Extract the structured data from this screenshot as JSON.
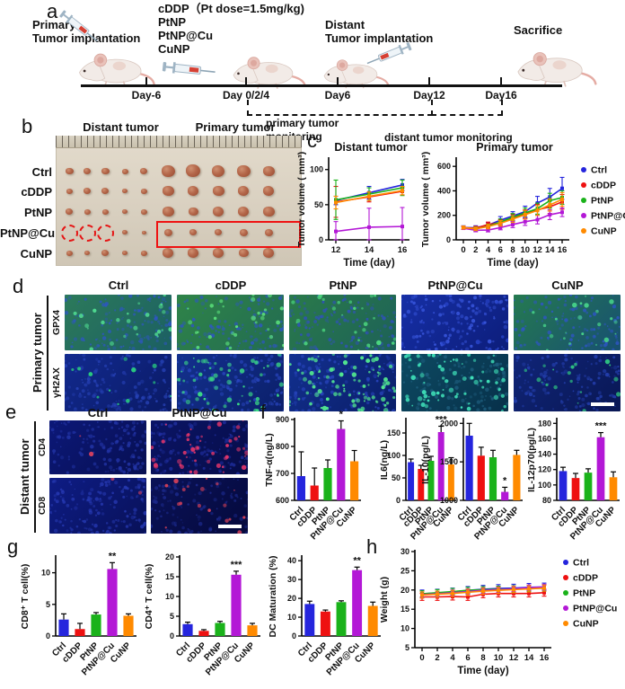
{
  "panel_a": {
    "label": "a",
    "primary_implant": [
      "Primary",
      "Tumor implantation"
    ],
    "treatments": [
      "cDDP（Pt dose=1.5mg/kg)",
      "PtNP",
      "PtNP@Cu",
      "CuNP"
    ],
    "distant_implant": [
      "Distant",
      "Tumor implantation"
    ],
    "sacrifice": "Sacrifice",
    "days": [
      "Day-6",
      "Day 0/2/4",
      "Day6",
      "Day12",
      "Day16"
    ],
    "monitoring_primary": [
      "primary tumor",
      "monitoring"
    ],
    "monitoring_distant": "distant tumor monitoring"
  },
  "panel_b": {
    "label": "b",
    "headers": [
      "Distant tumor",
      "Primary tumor"
    ],
    "rows": [
      "Ctrl",
      "cDDP",
      "PtNP",
      "PtNP@Cu",
      "CuNP"
    ],
    "photo": {
      "rows": [
        {
          "label": "Ctrl",
          "distant": [
            9,
            8,
            9,
            7,
            8
          ],
          "primary": [
            15,
            16,
            14,
            15,
            13
          ],
          "primary_boxed": false
        },
        {
          "label": "cDDP",
          "distant": [
            7,
            8,
            8,
            6,
            7
          ],
          "primary": [
            13,
            12,
            13,
            12,
            12
          ],
          "primary_boxed": false
        },
        {
          "label": "PtNP",
          "distant": [
            8,
            7,
            7,
            6,
            7
          ],
          "primary": [
            13,
            11,
            12,
            12,
            13
          ],
          "primary_boxed": false
        },
        {
          "label": "PtNP@Cu",
          "distant": [
            0,
            0,
            0,
            6,
            5
          ],
          "primary": [
            9,
            8,
            8,
            9,
            9
          ],
          "primary_boxed": true
        },
        {
          "label": "CuNP",
          "distant": [
            7,
            6,
            8,
            6,
            7
          ],
          "primary": [
            12,
            12,
            12,
            11,
            12
          ],
          "primary_boxed": false
        }
      ]
    }
  },
  "panel_c": {
    "label": "c"
  },
  "panel_d": {
    "label": "d",
    "col_headers": [
      "Ctrl",
      "cDDP",
      "PtNP",
      "PtNP@Cu",
      "CuNP"
    ],
    "group_label": "Primary tumor",
    "row_labels": [
      "GPX4",
      "γH2AX"
    ],
    "tiles": [
      [
        {
          "bg1": "#2c7a5a",
          "bg2": "#1b5f63",
          "nuc": "#2e55c8",
          "nucd": 130,
          "fleck": "#4fd88f",
          "fld": 25,
          "seed": 11
        },
        {
          "bg1": "#2f8448",
          "bg2": "#226b52",
          "nuc": "#2e55c8",
          "nucd": 130,
          "fleck": "#5ae07a",
          "fld": 30,
          "seed": 22
        },
        {
          "bg1": "#2a7a4a",
          "bg2": "#1d6158",
          "nuc": "#3050c0",
          "nucd": 130,
          "fleck": "#4cd87f",
          "fld": 28,
          "seed": 33
        },
        {
          "bg1": "#162fa6",
          "bg2": "#0c1d7a",
          "nuc": "#3a58e0",
          "nucd": 150,
          "fleck": "#2743c8",
          "fld": 15,
          "seed": 44
        },
        {
          "bg1": "#257a50",
          "bg2": "#174f72",
          "nuc": "#2e55c8",
          "nucd": 120,
          "fleck": "#46d089",
          "fld": 22,
          "seed": 55
        }
      ],
      [
        {
          "bg1": "#122a8e",
          "bg2": "#0a1a66",
          "nuc": "#2742b8",
          "nucd": 150,
          "fleck": "#28c87f",
          "fld": 12,
          "seed": 66
        },
        {
          "bg1": "#13318e",
          "bg2": "#0b1f6a",
          "nuc": "#2946c0",
          "nucd": 150,
          "fleck": "#3ad887",
          "fld": 55,
          "seed": 77
        },
        {
          "bg1": "#123090",
          "bg2": "#0a1e68",
          "nuc": "#2946c0",
          "nucd": 150,
          "fleck": "#52e88f",
          "fld": 90,
          "seed": 88
        },
        {
          "bg1": "#0d4a62",
          "bg2": "#07304a",
          "nuc": "#1e6080",
          "nucd": 140,
          "fleck": "#3fe0b8",
          "fld": 70,
          "seed": 99
        },
        {
          "bg1": "#102578",
          "bg2": "#091754",
          "nuc": "#2440b0",
          "nucd": 140,
          "fleck": "#30c882",
          "fld": 18,
          "seed": 101
        }
      ]
    ]
  },
  "panel_e": {
    "label": "e",
    "col_headers": [
      "Ctrl",
      "PtNP@Cu"
    ],
    "group_label": "Distant tumor",
    "row_labels": [
      "CD4",
      "CD8"
    ],
    "tiles": [
      [
        {
          "bg1": "#0c1878",
          "bg2": "#070f52",
          "nuc": "#2335a8",
          "nucd": 150,
          "fleck": "#d04060",
          "fld": 3,
          "seed": 7
        },
        {
          "bg1": "#0b1566",
          "bg2": "#060c48",
          "nuc": "#202fa0",
          "nucd": 140,
          "fleck": "#e0356a",
          "fld": 45,
          "seed": 17
        }
      ],
      [
        {
          "bg1": "#0e1c85",
          "bg2": "#081158",
          "nuc": "#2639b2",
          "nucd": 160,
          "fleck": "#d04060",
          "fld": 2,
          "seed": 27
        },
        {
          "bg1": "#0a1258",
          "bg2": "#05093c",
          "nuc": "#1c2a8e",
          "nucd": 120,
          "fleck": "#d0405a",
          "fld": 18,
          "seed": 37
        }
      ]
    ]
  },
  "panel_f": {
    "label": "f"
  },
  "panel_g": {
    "label": "g"
  },
  "panel_h": {
    "label": "h"
  },
  "chart_data": {
    "groups": [
      "Ctrl",
      "cDDP",
      "PtNP",
      "PtNP@Cu",
      "CuNP"
    ],
    "group_colors": [
      "#2525dd",
      "#ee1111",
      "#1ab21a",
      "#b318d6",
      "#ff8a00"
    ],
    "distant_tumor": {
      "type": "line",
      "title": "Distant tumor",
      "xlabel": "Time (day)",
      "ylabel": "Tumor volume ( mm³)",
      "x": [
        12,
        14,
        16
      ],
      "xticks": [
        12,
        14,
        16
      ],
      "ylim": [
        0,
        115
      ],
      "yticks": [
        0,
        50,
        100
      ],
      "legend": false,
      "series": [
        {
          "name": "Ctrl",
          "values": [
            56,
            67,
            78
          ],
          "err": [
            6,
            9,
            8
          ]
        },
        {
          "name": "cDDP",
          "values": [
            54,
            61,
            69
          ],
          "err": [
            22,
            7,
            5
          ]
        },
        {
          "name": "PtNP",
          "values": [
            57,
            65,
            74
          ],
          "err": [
            28,
            9,
            11
          ]
        },
        {
          "name": "PtNP@Cu",
          "values": [
            12,
            18,
            19
          ],
          "err": [
            14,
            27,
            27
          ]
        },
        {
          "name": "CuNP",
          "values": [
            53,
            62,
            70
          ],
          "err": [
            9,
            6,
            6
          ]
        }
      ]
    },
    "primary_tumor": {
      "type": "line",
      "title": "Primary tumor",
      "xlabel": "Time (day)",
      "ylabel": "Tumor volume ( mm³)",
      "x": [
        0,
        2,
        4,
        6,
        8,
        10,
        12,
        14,
        16
      ],
      "xticks": [
        0,
        2,
        4,
        6,
        8,
        10,
        12,
        14,
        16
      ],
      "ylim": [
        0,
        660
      ],
      "yticks": [
        0,
        200,
        400,
        600
      ],
      "legend": true,
      "legend_position": "right",
      "series": [
        {
          "name": "Ctrl",
          "values": [
            100,
            100,
            120,
            160,
            195,
            230,
            300,
            350,
            420
          ],
          "err": [
            15,
            15,
            20,
            30,
            35,
            45,
            55,
            70,
            90
          ]
        },
        {
          "name": "cDDP",
          "values": [
            100,
            95,
            125,
            140,
            180,
            210,
            245,
            270,
            310
          ],
          "err": [
            12,
            15,
            20,
            25,
            30,
            35,
            45,
            55,
            60
          ]
        },
        {
          "name": "PtNP",
          "values": [
            98,
            90,
            110,
            145,
            185,
            220,
            255,
            320,
            345
          ],
          "err": [
            12,
            15,
            18,
            25,
            30,
            40,
            45,
            60,
            55
          ]
        },
        {
          "name": "PtNP@Cu",
          "values": [
            95,
            78,
            80,
            100,
            125,
            148,
            165,
            205,
            225
          ],
          "err": [
            10,
            12,
            15,
            18,
            25,
            30,
            35,
            40,
            35
          ]
        },
        {
          "name": "CuNP",
          "values": [
            100,
            90,
            108,
            135,
            170,
            205,
            240,
            285,
            330
          ],
          "err": [
            12,
            14,
            18,
            22,
            28,
            35,
            40,
            50,
            55
          ]
        }
      ]
    },
    "tnf": {
      "type": "bar",
      "ylabel": "TNF-α(ng/L)",
      "ylim": [
        600,
        900
      ],
      "yticks": [
        600,
        700,
        800,
        900
      ],
      "values": [
        690,
        655,
        720,
        865,
        745
      ],
      "err": [
        90,
        65,
        30,
        30,
        40
      ],
      "sig": {
        "index": 3,
        "text": "*"
      }
    },
    "il6": {
      "type": "bar",
      "ylabel": "IL6(ng/L)",
      "ylim": [
        0,
        180
      ],
      "yticks": [
        0,
        50,
        100,
        150
      ],
      "values": [
        85,
        70,
        88,
        152,
        80
      ],
      "err": [
        7,
        8,
        10,
        13,
        15
      ],
      "sig": {
        "index": 3,
        "text": "***"
      }
    },
    "il10": {
      "type": "bar",
      "ylabel": "IL-10(pg/L)",
      "ylim": [
        1000,
        2050
      ],
      "yticks": [
        1000,
        1500,
        2000
      ],
      "values": [
        1840,
        1580,
        1560,
        1110,
        1590
      ],
      "err": [
        160,
        110,
        90,
        60,
        60
      ],
      "sig": {
        "index": 3,
        "text": "*"
      }
    },
    "il12": {
      "type": "bar",
      "ylabel": "IL-12p70(pg/L)",
      "ylim": [
        80,
        185
      ],
      "yticks": [
        80,
        100,
        120,
        140,
        160,
        180
      ],
      "values": [
        118,
        109,
        116,
        162,
        110
      ],
      "err": [
        5,
        6,
        5,
        6,
        7
      ],
      "sig": {
        "index": 3,
        "text": "***"
      }
    },
    "cd8": {
      "type": "bar",
      "ylabel": "CD8⁺ T cell(%)",
      "ylim": [
        0,
        12.5
      ],
      "yticks": [
        0,
        5,
        10
      ],
      "values": [
        2.6,
        1.1,
        3.4,
        10.6,
        3.2
      ],
      "err": [
        0.9,
        0.9,
        0.3,
        1.0,
        0.3
      ],
      "sig": {
        "index": 3,
        "text": "**"
      }
    },
    "cd4": {
      "type": "bar",
      "ylabel": "CD4⁺ T cell(%)",
      "ylim": [
        0,
        20
      ],
      "yticks": [
        0,
        5,
        10,
        15,
        20
      ],
      "values": [
        3.0,
        1.3,
        3.3,
        15.5,
        2.7
      ],
      "err": [
        0.5,
        0.3,
        0.4,
        0.9,
        0.5
      ],
      "sig": {
        "index": 3,
        "text": "***"
      }
    },
    "dc": {
      "type": "bar",
      "ylabel": "DC Maturation (%)",
      "ylim": [
        0,
        42
      ],
      "yticks": [
        0,
        10,
        20,
        30,
        40
      ],
      "values": [
        17,
        13,
        18,
        35,
        16
      ],
      "err": [
        1.5,
        0.8,
        0.7,
        1.6,
        2.0
      ],
      "sig": {
        "index": 3,
        "text": "**"
      }
    },
    "weight": {
      "type": "line",
      "title": "",
      "xlabel": "Time (day)",
      "ylabel": "Weight (g)",
      "x": [
        0,
        2,
        4,
        6,
        8,
        10,
        12,
        14,
        16
      ],
      "xticks": [
        0,
        2,
        4,
        6,
        8,
        10,
        12,
        14,
        16
      ],
      "ylim": [
        5,
        30
      ],
      "yticks": [
        5,
        10,
        15,
        20,
        25,
        30
      ],
      "legend": true,
      "legend_position": "right",
      "series": [
        {
          "name": "Ctrl",
          "values": [
            19.0,
            19.2,
            19.5,
            19.9,
            20.2,
            20.4,
            20.5,
            20.7,
            20.8
          ],
          "err": 1.0
        },
        {
          "name": "cDDP",
          "values": [
            18.2,
            18.2,
            18.3,
            18.2,
            18.9,
            19.1,
            19.1,
            19.1,
            19.3
          ],
          "err": 0.9
        },
        {
          "name": "PtNP",
          "values": [
            19.0,
            19.3,
            19.6,
            19.9,
            20.1,
            20.2,
            20.3,
            20.4,
            20.5
          ],
          "err": 0.8
        },
        {
          "name": "PtNP@Cu",
          "values": [
            18.8,
            19.0,
            19.3,
            19.6,
            19.9,
            20.1,
            20.3,
            20.6,
            20.8
          ],
          "err": 0.7
        },
        {
          "name": "CuNP",
          "values": [
            18.7,
            18.9,
            19.1,
            19.4,
            19.7,
            19.9,
            20.1,
            20.3,
            20.5
          ],
          "err": 0.8
        }
      ]
    }
  }
}
